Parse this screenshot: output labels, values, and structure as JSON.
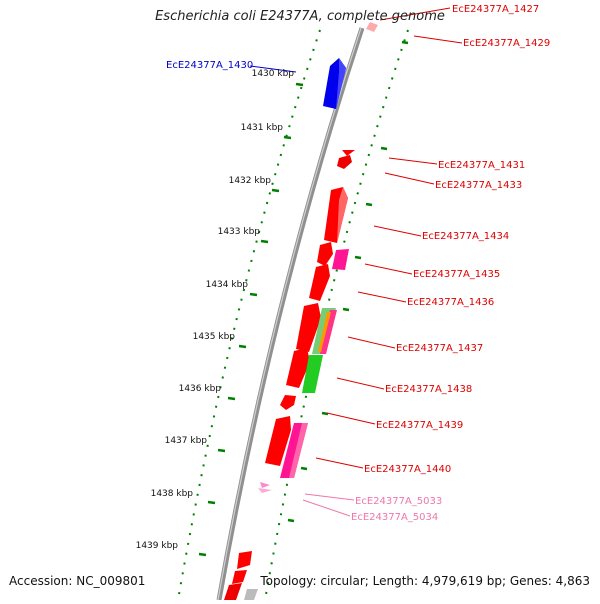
{
  "title": "Escherichia coli E24377A, complete genome",
  "footer": {
    "accession": "Accession: NC_009801",
    "topology": "Topology: circular; Length: 4,979,619 bp; Genes: 4,863"
  },
  "colors": {
    "backbone": "#888888",
    "ticks": "#008000",
    "gene_red": "#ff0000",
    "gene_blue": "#0000ff",
    "gene_magenta": "#ff1493",
    "gene_green": "#33cc33",
    "gene_pink": "#ff88bb",
    "gene_grey": "#bbbbbb",
    "label_red": "#dd0000",
    "label_blue": "#0000cc",
    "label_pink": "#ee77aa"
  },
  "kbp_labels": [
    "1430 kbp",
    "1431 kbp",
    "1432 kbp",
    "1433 kbp",
    "1434 kbp",
    "1435 kbp",
    "1436 kbp",
    "1437 kbp",
    "1438 kbp",
    "1439 kbp"
  ],
  "gene_labels": [
    {
      "text": "EcE24377A_1427",
      "color": "red"
    },
    {
      "text": "EcE24377A_1429",
      "color": "red"
    },
    {
      "text": "EcE24377A_1430",
      "color": "blue"
    },
    {
      "text": "EcE24377A_1431",
      "color": "red"
    },
    {
      "text": "EcE24377A_1433",
      "color": "red"
    },
    {
      "text": "EcE24377A_1434",
      "color": "red"
    },
    {
      "text": "EcE24377A_1435",
      "color": "red"
    },
    {
      "text": "EcE24377A_1436",
      "color": "red"
    },
    {
      "text": "EcE24377A_1437",
      "color": "red"
    },
    {
      "text": "EcE24377A_1438",
      "color": "red"
    },
    {
      "text": "EcE24377A_1439",
      "color": "red"
    },
    {
      "text": "EcE24377A_1440",
      "color": "red"
    },
    {
      "text": "EcE24377A_5033",
      "color": "pink"
    },
    {
      "text": "EcE24377A_5034",
      "color": "pink"
    }
  ]
}
